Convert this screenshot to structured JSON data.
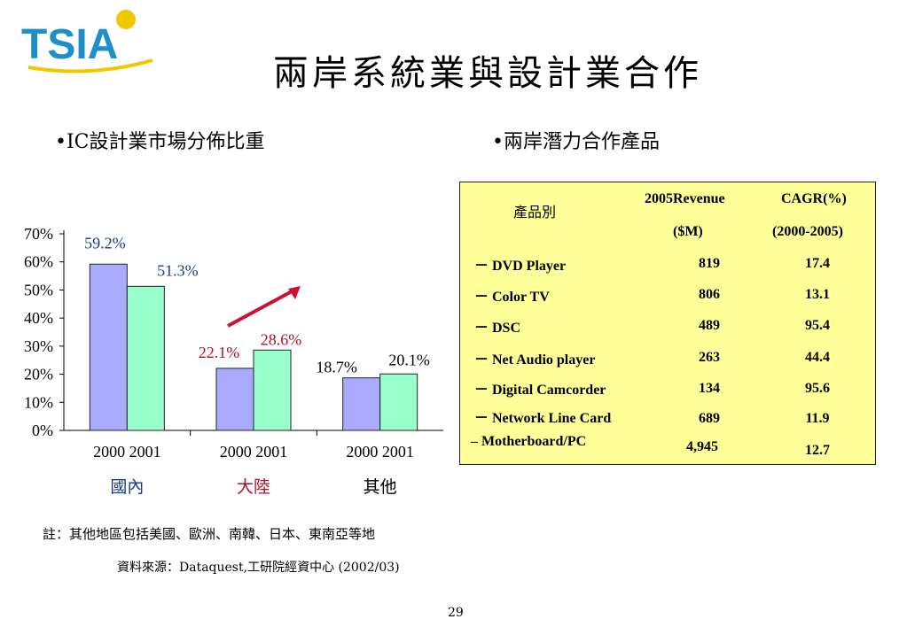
{
  "slide": {
    "logo_text": "TSIA",
    "title": "兩岸系統業與設計業合作",
    "left_heading": "•IC設計業市場分佈比重",
    "right_heading": "•兩岸潛力合作產品",
    "note": "註：其他地區包括美國、歐洲、南韓、日本、東南亞等地",
    "source": "資料來源：Dataquest,工研院經資中心 (2002/03)",
    "page_number": "29",
    "colors": {
      "logo_blue": "#1f8fc8",
      "logo_yellow": "#f0c800",
      "bar_2000": "#aaaaff",
      "bar_2001": "#99ffcc",
      "arrow": "#cc1133",
      "table_bg": "#ffff99",
      "label_blue": "#1a3a8a",
      "label_red": "#aa1122"
    }
  },
  "chart_data": {
    "type": "bar",
    "categories": [
      "國內",
      "大陸",
      "其他"
    ],
    "x_tick_labels": [
      "2000 2001",
      "2000 2001",
      "2000 2001"
    ],
    "series": [
      {
        "name": "2000",
        "values": [
          59.2,
          22.1,
          18.7
        ]
      },
      {
        "name": "2001",
        "values": [
          51.3,
          28.6,
          20.1
        ]
      }
    ],
    "data_labels": [
      [
        "59.2%",
        "51.3%"
      ],
      [
        "22.1%",
        "28.6%"
      ],
      [
        "18.7%",
        "20.1%"
      ]
    ],
    "y_ticks": [
      "0%",
      "10%",
      "20%",
      "30%",
      "40%",
      "50%",
      "60%",
      "70%"
    ],
    "ylim": [
      0,
      70
    ],
    "grid": false,
    "legend": "none"
  },
  "table": {
    "headers": {
      "product": "產品別",
      "revenue_line1": "2005Revenue",
      "revenue_line2": "($M)",
      "cagr_line1": "CAGR(%)",
      "cagr_line2": "(2000-2005)"
    },
    "rows": [
      {
        "name": "－  DVD Player",
        "revenue": "819",
        "cagr": "17.4"
      },
      {
        "name": "－  Color TV",
        "revenue": "806",
        "cagr": "13.1"
      },
      {
        "name": "－  DSC",
        "revenue": "489",
        "cagr": "95.4"
      },
      {
        "name": "－  Net Audio player",
        "revenue": "263",
        "cagr": "44.4"
      },
      {
        "name": "－ Digital Camcorder",
        "revenue": "134",
        "cagr": "95.6"
      },
      {
        "name": "－ Network Line Card",
        "revenue": "689",
        "cagr": "11.9"
      },
      {
        "name": "‒ Motherboard/PC",
        "revenue": "4,945",
        "cagr": "12.7"
      }
    ]
  }
}
